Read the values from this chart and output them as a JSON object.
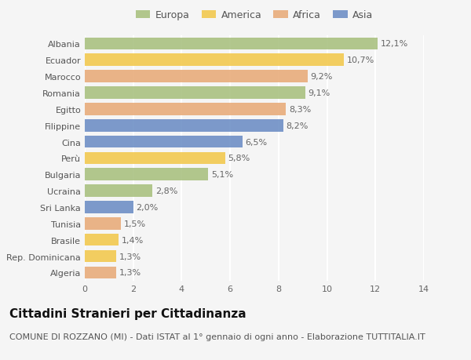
{
  "categories": [
    "Albania",
    "Ecuador",
    "Marocco",
    "Romania",
    "Egitto",
    "Filippine",
    "Cina",
    "Perù",
    "Bulgaria",
    "Ucraina",
    "Sri Lanka",
    "Tunisia",
    "Brasile",
    "Rep. Dominicana",
    "Algeria"
  ],
  "values": [
    12.1,
    10.7,
    9.2,
    9.1,
    8.3,
    8.2,
    6.5,
    5.8,
    5.1,
    2.8,
    2.0,
    1.5,
    1.4,
    1.3,
    1.3
  ],
  "labels": [
    "12,1%",
    "10,7%",
    "9,2%",
    "9,1%",
    "8,3%",
    "8,2%",
    "6,5%",
    "5,8%",
    "5,1%",
    "2,8%",
    "2,0%",
    "1,5%",
    "1,4%",
    "1,3%",
    "1,3%"
  ],
  "continent": [
    "Europa",
    "America",
    "Africa",
    "Europa",
    "Africa",
    "Asia",
    "Asia",
    "America",
    "Europa",
    "Europa",
    "Asia",
    "Africa",
    "America",
    "America",
    "Africa"
  ],
  "colors": {
    "Europa": "#a8c07e",
    "America": "#f2c84b",
    "Africa": "#e8aa78",
    "Asia": "#6b8dc4"
  },
  "legend_order": [
    "Europa",
    "America",
    "Africa",
    "Asia"
  ],
  "xlim": [
    0,
    14
  ],
  "xticks": [
    0,
    2,
    4,
    6,
    8,
    10,
    12,
    14
  ],
  "title": "Cittadini Stranieri per Cittadinanza",
  "subtitle": "COMUNE DI ROZZANO (MI) - Dati ISTAT al 1° gennaio di ogni anno - Elaborazione TUTTITALIA.IT",
  "bg_color": "#f5f5f5",
  "grid_color": "#ffffff",
  "bar_height": 0.75,
  "title_fontsize": 11,
  "subtitle_fontsize": 8,
  "label_fontsize": 8,
  "tick_fontsize": 8,
  "legend_fontsize": 9
}
